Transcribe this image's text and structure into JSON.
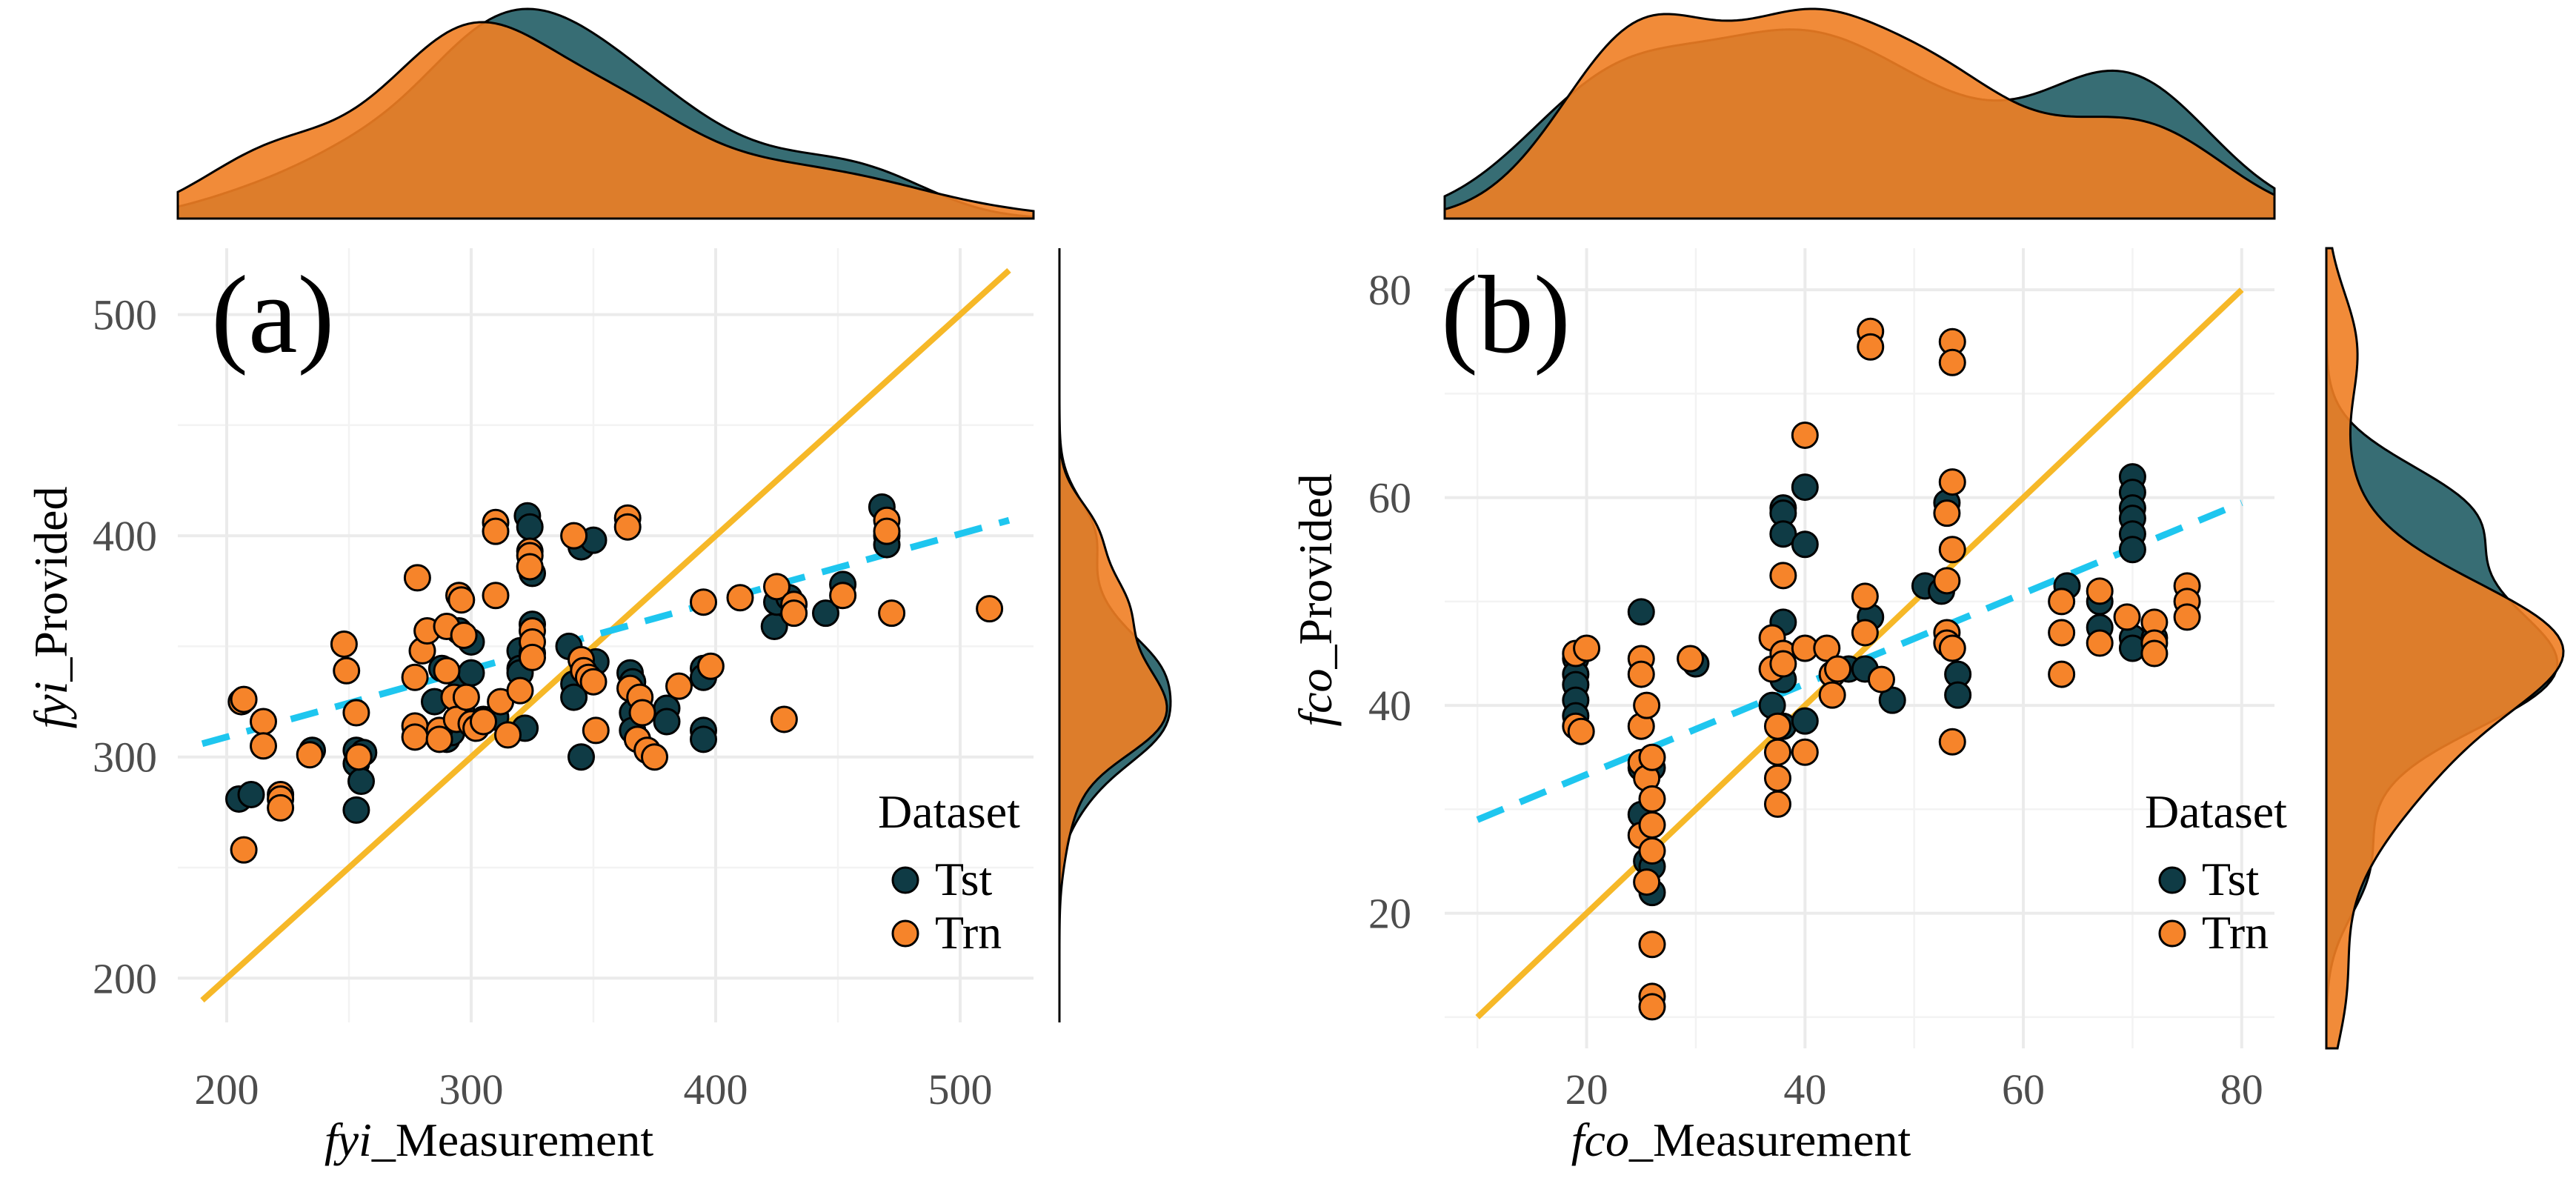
{
  "colors": {
    "tst": "#0f3b45",
    "trn": "#f6842a",
    "density_tst": "#376d74",
    "density_trn": "#f07e24",
    "identity_line": "#f6b828",
    "fit_line": "#1ec6ef"
  },
  "chart_data": [
    {
      "panel_label": "(a)",
      "type": "scatter",
      "xlabel": {
        "var": "fyi",
        "suffix": "_Measurement"
      },
      "ylabel": {
        "var": "fyi",
        "suffix": "_Provided"
      },
      "xlim": [
        180,
        530
      ],
      "ylim": [
        180,
        530
      ],
      "x_ticks": [
        200,
        300,
        400,
        500
      ],
      "y_ticks": [
        200,
        300,
        400,
        500
      ],
      "x_tick_labels": [
        "200",
        "300",
        "400",
        "500"
      ],
      "y_tick_labels": [
        "200",
        "300",
        "400",
        "500"
      ],
      "legend": {
        "title": "Dataset",
        "entries": [
          "Tst",
          "Trn"
        ]
      },
      "identity_line": {
        "from": [
          190,
          190
        ],
        "to": [
          520,
          520
        ]
      },
      "fit_line": {
        "from": [
          190,
          306
        ],
        "to": [
          520,
          407
        ]
      },
      "series": [
        {
          "name": "Tst",
          "points": [
            [
              205,
              281
            ],
            [
              210,
              283
            ],
            [
              235,
              303
            ],
            [
              253,
              303
            ],
            [
              253,
              297
            ],
            [
              253,
              276
            ],
            [
              255,
              289
            ],
            [
              256,
              302
            ],
            [
              285,
              325
            ],
            [
              288,
              340
            ],
            [
              290,
              308
            ],
            [
              292,
              311
            ],
            [
              295,
              357
            ],
            [
              296,
              334
            ],
            [
              296,
              321
            ],
            [
              300,
              352
            ],
            [
              300,
              338
            ],
            [
              300,
              315
            ],
            [
              305,
              317
            ],
            [
              310,
              318
            ],
            [
              320,
              348
            ],
            [
              320,
              340
            ],
            [
              320,
              338
            ],
            [
              322,
              313
            ],
            [
              323,
              409
            ],
            [
              324,
              404
            ],
            [
              325,
              383
            ],
            [
              325,
              360
            ],
            [
              325,
              347
            ],
            [
              340,
              350
            ],
            [
              342,
              333
            ],
            [
              342,
              327
            ],
            [
              345,
              395
            ],
            [
              345,
              300
            ],
            [
              346,
              340
            ],
            [
              350,
              398
            ],
            [
              351,
              343
            ],
            [
              365,
              338
            ],
            [
              366,
              334
            ],
            [
              366,
              320
            ],
            [
              366,
              312
            ],
            [
              368,
              308
            ],
            [
              380,
              322
            ],
            [
              380,
              316
            ],
            [
              395,
              340
            ],
            [
              395,
              336
            ],
            [
              395,
              312
            ],
            [
              395,
              308
            ],
            [
              424,
              359
            ],
            [
              425,
              370
            ],
            [
              430,
              372
            ],
            [
              445,
              365
            ],
            [
              452,
              378
            ],
            [
              468,
              413
            ],
            [
              470,
              400
            ],
            [
              470,
              396
            ]
          ]
        },
        {
          "name": "Trn",
          "points": [
            [
              206,
              325
            ],
            [
              207,
              326
            ],
            [
              207,
              258
            ],
            [
              215,
              316
            ],
            [
              215,
              305
            ],
            [
              222,
              283
            ],
            [
              222,
              281
            ],
            [
              222,
              277
            ],
            [
              234,
              301
            ],
            [
              248,
              351
            ],
            [
              249,
              339
            ],
            [
              253,
              320
            ],
            [
              254,
              300
            ],
            [
              277,
              336
            ],
            [
              277,
              314
            ],
            [
              277,
              309
            ],
            [
              278,
              381
            ],
            [
              280,
              348
            ],
            [
              282,
              357
            ],
            [
              287,
              312
            ],
            [
              287,
              308
            ],
            [
              290,
              339
            ],
            [
              290,
              359
            ],
            [
              293,
              327
            ],
            [
              294,
              317
            ],
            [
              295,
              373
            ],
            [
              296,
              371
            ],
            [
              297,
              355
            ],
            [
              298,
              327
            ],
            [
              300,
              315
            ],
            [
              302,
              313
            ],
            [
              305,
              316
            ],
            [
              310,
              406
            ],
            [
              310,
              402
            ],
            [
              310,
              373
            ],
            [
              312,
              325
            ],
            [
              315,
              310
            ],
            [
              320,
              330
            ],
            [
              324,
              393
            ],
            [
              324,
              391
            ],
            [
              324,
              386
            ],
            [
              325,
              357
            ],
            [
              325,
              352
            ],
            [
              325,
              345
            ],
            [
              342,
              400
            ],
            [
              345,
              344
            ],
            [
              346,
              339
            ],
            [
              348,
              336
            ],
            [
              350,
              334
            ],
            [
              351,
              312
            ],
            [
              364,
              408
            ],
            [
              364,
              404
            ],
            [
              365,
              331
            ],
            [
              368,
              308
            ],
            [
              369,
              327
            ],
            [
              370,
              320
            ],
            [
              372,
              303
            ],
            [
              375,
              300
            ],
            [
              385,
              332
            ],
            [
              395,
              370
            ],
            [
              398,
              341
            ],
            [
              410,
              372
            ],
            [
              425,
              377
            ],
            [
              428,
              317
            ],
            [
              432,
              369
            ],
            [
              432,
              365
            ],
            [
              452,
              373
            ],
            [
              470,
              407
            ],
            [
              470,
              402
            ],
            [
              472,
              365
            ],
            [
              512,
              367
            ]
          ]
        }
      ]
    },
    {
      "panel_label": "(b)",
      "type": "scatter",
      "xlabel": {
        "var": "fco",
        "suffix": "_Measurement"
      },
      "ylabel": {
        "var": "fco",
        "suffix": "_Provided"
      },
      "xlim": [
        7,
        83
      ],
      "ylim": [
        7,
        84
      ],
      "x_ticks": [
        20,
        40,
        60,
        80
      ],
      "y_ticks": [
        20,
        40,
        60,
        80
      ],
      "x_tick_labels": [
        "20",
        "40",
        "60",
        "80"
      ],
      "y_tick_labels": [
        "20",
        "40",
        "60",
        "80"
      ],
      "legend": {
        "title": "Dataset",
        "entries": [
          "Tst",
          "Trn"
        ]
      },
      "identity_line": {
        "from": [
          10,
          10
        ],
        "to": [
          80,
          80
        ]
      },
      "fit_line": {
        "from": [
          10,
          29
        ],
        "to": [
          80,
          59.5
        ]
      },
      "series": [
        {
          "name": "Tst",
          "points": [
            [
              19,
              44.5
            ],
            [
              19,
              43
            ],
            [
              19,
              42
            ],
            [
              19,
              40.5
            ],
            [
              19,
              39
            ],
            [
              25,
              49
            ],
            [
              25,
              34
            ],
            [
              25,
              29.5
            ],
            [
              25.5,
              25
            ],
            [
              26,
              34
            ],
            [
              26,
              24.5
            ],
            [
              26,
              22
            ],
            [
              30,
              44
            ],
            [
              37,
              40
            ],
            [
              38,
              59
            ],
            [
              38,
              58.5
            ],
            [
              38,
              56.5
            ],
            [
              38,
              48
            ],
            [
              38,
              42.5
            ],
            [
              38,
              38
            ],
            [
              40,
              61
            ],
            [
              40,
              55.5
            ],
            [
              40,
              38.5
            ],
            [
              44,
              43.5
            ],
            [
              45.5,
              43.5
            ],
            [
              46,
              48.5
            ],
            [
              48,
              40.5
            ],
            [
              51,
              51.5
            ],
            [
              52.5,
              51
            ],
            [
              53,
              59.5
            ],
            [
              54,
              43
            ],
            [
              54,
              41
            ],
            [
              64,
              51.5
            ],
            [
              67,
              50
            ],
            [
              67,
              47.5
            ],
            [
              70,
              62
            ],
            [
              70,
              60.5
            ],
            [
              70,
              59
            ],
            [
              70,
              58
            ],
            [
              70,
              56.5
            ],
            [
              70,
              55
            ],
            [
              70,
              46.5
            ],
            [
              70,
              45.5
            ],
            [
              72,
              46.5
            ]
          ]
        },
        {
          "name": "Trn",
          "points": [
            [
              19,
              45
            ],
            [
              19,
              38
            ],
            [
              19.5,
              37.5
            ],
            [
              20,
              45.5
            ],
            [
              25,
              44.5
            ],
            [
              25,
              43
            ],
            [
              25,
              38
            ],
            [
              25,
              34.5
            ],
            [
              25,
              27.5
            ],
            [
              25.5,
              40
            ],
            [
              25.5,
              33
            ],
            [
              25.5,
              23
            ],
            [
              26,
              35
            ],
            [
              26,
              31
            ],
            [
              26,
              28.5
            ],
            [
              26,
              26
            ],
            [
              26,
              17
            ],
            [
              26,
              12
            ],
            [
              26,
              11
            ],
            [
              29.5,
              44.5
            ],
            [
              37,
              46.5
            ],
            [
              37,
              43.5
            ],
            [
              37.5,
              38
            ],
            [
              37.5,
              35.5
            ],
            [
              37.5,
              33
            ],
            [
              37.5,
              30.5
            ],
            [
              38,
              52.5
            ],
            [
              38,
              45
            ],
            [
              38,
              44
            ],
            [
              40,
              66
            ],
            [
              40,
              45.5
            ],
            [
              40,
              35.5
            ],
            [
              42,
              45.5
            ],
            [
              42.5,
              43
            ],
            [
              42.5,
              41
            ],
            [
              43,
              43.5
            ],
            [
              45.5,
              50.5
            ],
            [
              45.5,
              47
            ],
            [
              46,
              76
            ],
            [
              46,
              74.5
            ],
            [
              47,
              42.5
            ],
            [
              53,
              58.5
            ],
            [
              53,
              52
            ],
            [
              53,
              47
            ],
            [
              53,
              46
            ],
            [
              53.5,
              75
            ],
            [
              53.5,
              73
            ],
            [
              53.5,
              61.5
            ],
            [
              53.5,
              55
            ],
            [
              53.5,
              45.5
            ],
            [
              53.5,
              36.5
            ],
            [
              63.5,
              50
            ],
            [
              63.5,
              47
            ],
            [
              63.5,
              43
            ],
            [
              67,
              51
            ],
            [
              67,
              46
            ],
            [
              69.5,
              48.5
            ],
            [
              72,
              48
            ],
            [
              72,
              46
            ],
            [
              72,
              45
            ],
            [
              75,
              51.5
            ],
            [
              75,
              50
            ],
            [
              75,
              48.5
            ]
          ]
        }
      ]
    }
  ]
}
